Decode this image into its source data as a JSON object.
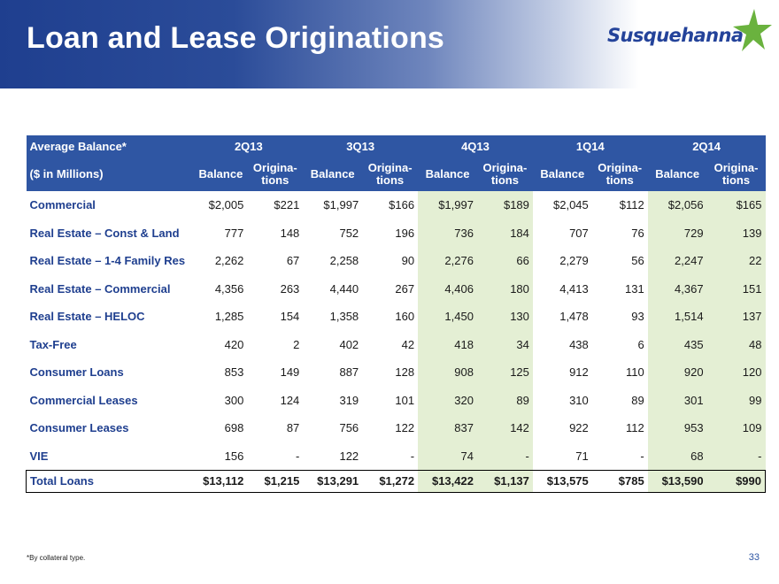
{
  "header": {
    "title": "Loan and Lease Originations",
    "logo_text": "Susquehanna",
    "brand_color": "#24439a",
    "star_color": "#6ab23e"
  },
  "table": {
    "row_header_1": "Average Balance*",
    "row_header_2": "($ in Millions)",
    "periods": [
      "2Q13",
      "3Q13",
      "4Q13",
      "1Q14",
      "2Q14"
    ],
    "sub_balance": "Balance",
    "sub_orig_1": "Origina-",
    "sub_orig_2": "tions",
    "rows": [
      {
        "label": "Commercial",
        "values": [
          "$2,005",
          "$221",
          "$1,997",
          "$166",
          "$1,997",
          "$189",
          "$2,045",
          "$112",
          "$2,056",
          "$165"
        ]
      },
      {
        "label": "Real Estate – Const & Land",
        "values": [
          "777",
          "148",
          "752",
          "196",
          "736",
          "184",
          "707",
          "76",
          "729",
          "139"
        ]
      },
      {
        "label": "Real Estate – 1-4 Family Res",
        "values": [
          "2,262",
          "67",
          "2,258",
          "90",
          "2,276",
          "66",
          "2,279",
          "56",
          "2,247",
          "22"
        ]
      },
      {
        "label": "Real Estate – Commercial",
        "values": [
          "4,356",
          "263",
          "4,440",
          "267",
          "4,406",
          "180",
          "4,413",
          "131",
          "4,367",
          "151"
        ]
      },
      {
        "label": "Real Estate – HELOC",
        "values": [
          "1,285",
          "154",
          "1,358",
          "160",
          "1,450",
          "130",
          "1,478",
          "93",
          "1,514",
          "137"
        ]
      },
      {
        "label": "Tax-Free",
        "values": [
          "420",
          "2",
          "402",
          "42",
          "418",
          "34",
          "438",
          "6",
          "435",
          "48"
        ]
      },
      {
        "label": "Consumer Loans",
        "values": [
          "853",
          "149",
          "887",
          "128",
          "908",
          "125",
          "912",
          "110",
          "920",
          "120"
        ]
      },
      {
        "label": "Commercial Leases",
        "values": [
          "300",
          "124",
          "319",
          "101",
          "320",
          "89",
          "310",
          "89",
          "301",
          "99"
        ]
      },
      {
        "label": "Consumer Leases",
        "values": [
          "698",
          "87",
          "756",
          "122",
          "837",
          "142",
          "922",
          "112",
          "953",
          "109"
        ]
      },
      {
        "label": "VIE",
        "values": [
          "156",
          "-",
          "122",
          "-",
          "74",
          "-",
          "71",
          "-",
          "68",
          "-"
        ]
      }
    ],
    "total": {
      "label": "Total Loans",
      "values": [
        "$13,112",
        "$1,215",
        "$13,291",
        "$1,272",
        "$13,422",
        "$1,137",
        "$13,575",
        "$785",
        "$13,590",
        "$990"
      ]
    }
  },
  "footnote": "*By collateral type.",
  "page_number": "33",
  "colors": {
    "header_blue": "#2f56a3",
    "shade_green": "#e4efd4",
    "label_blue": "#1f3f8f"
  }
}
